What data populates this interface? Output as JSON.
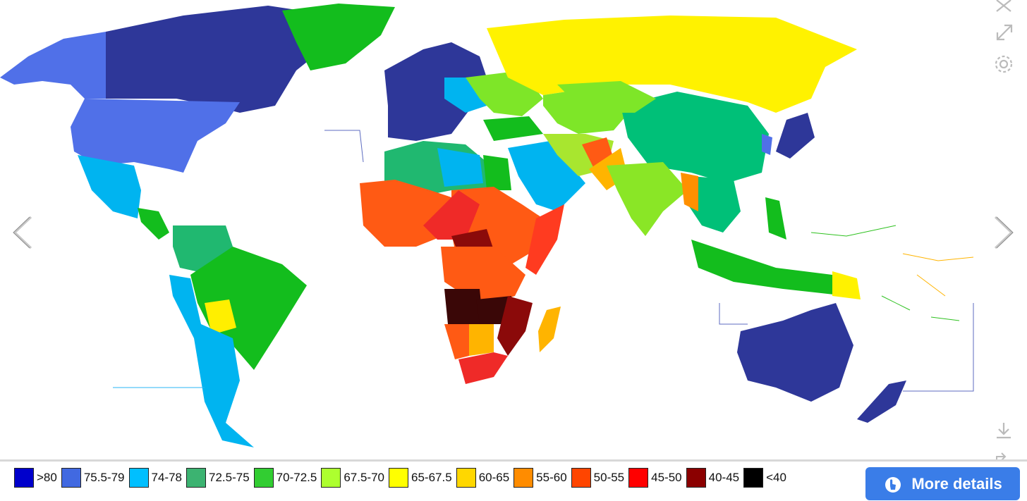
{
  "legend": [
    {
      "label": ">80",
      "color": "#0000cc"
    },
    {
      "label": "75.5-79",
      "color": "#4169e1"
    },
    {
      "label": "74-78",
      "color": "#00bfff"
    },
    {
      "label": "72.5-75",
      "color": "#3cb371"
    },
    {
      "label": "70-72.5",
      "color": "#32cd32"
    },
    {
      "label": "67.5-70",
      "color": "#adff2f"
    },
    {
      "label": "65-67.5",
      "color": "#ffff00"
    },
    {
      "label": "60-65",
      "color": "#ffd700"
    },
    {
      "label": "55-60",
      "color": "#ff8c00"
    },
    {
      "label": "50-55",
      "color": "#ff4500"
    },
    {
      "label": "45-50",
      "color": "#ff0000"
    },
    {
      "label": "40-45",
      "color": "#8b0000"
    },
    {
      "label": "<40",
      "color": "#000000"
    }
  ],
  "more_details": {
    "label": "More details",
    "color": "#3a7de8"
  },
  "icons": {
    "close": "close-icon",
    "expand": "expand-icon",
    "settings": "gear-icon",
    "prev": "chevron-left-icon",
    "next": "chevron-right-icon",
    "download": "download-icon",
    "share": "share-icon"
  }
}
